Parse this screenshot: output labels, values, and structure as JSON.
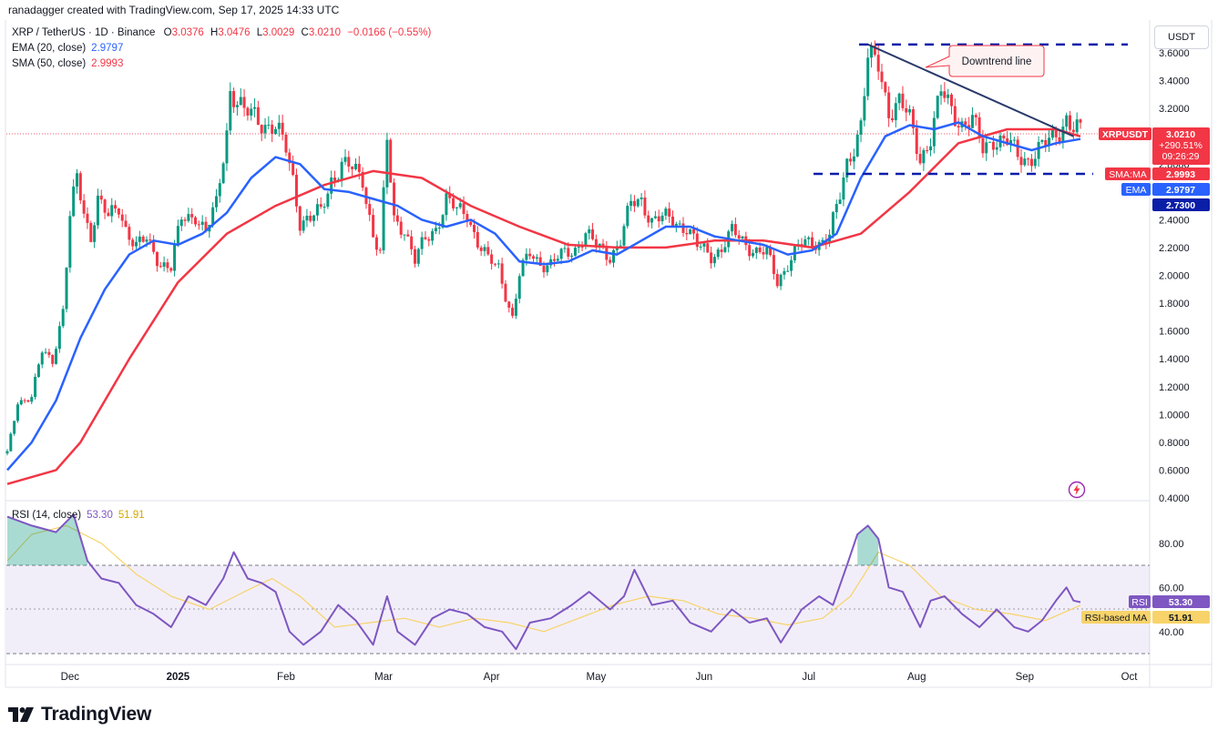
{
  "credit": "ranadagger created with TradingView.com, Sep 17, 2025 14:33 UTC",
  "legend": {
    "symbol": "XRP / TetherUS · 1D · Binance",
    "o_label": "O",
    "o_value": "3.0376",
    "h_label": "H",
    "h_value": "3.0476",
    "l_label": "L",
    "l_value": "3.0029",
    "c_label": "C",
    "c_value": "3.0210",
    "change": "−0.0166 (−0.55%)",
    "ema_label": "EMA (20, close)",
    "ema_value": "2.9797",
    "sma_label": "SMA (50, close)",
    "sma_value": "2.9993",
    "rsi_label": "RSI (14, close)",
    "rsi_value": "53.30",
    "rsi_ma_value": "51.91"
  },
  "currency_button": "USDT",
  "annotation": "Downtrend line",
  "price_tags": {
    "symbol": "XRPUSDT",
    "price": "3.0210",
    "change_pct": "+290.51%",
    "countdown": "09:26:29",
    "sma_label": "SMA:MA",
    "sma_value": "2.9993",
    "ema_label": "EMA",
    "ema_value": "2.9797",
    "level_value": "2.7300",
    "rsi_label": "RSI",
    "rsi_value": "53.30",
    "rsi_ma_label": "RSI-based MA",
    "rsi_ma_value": "51.91"
  },
  "logo_text": "TradingView",
  "colors": {
    "up": "#089981",
    "down": "#f23645",
    "ema": "#2962ff",
    "sma": "#f23645",
    "rsi": "#7e57c2",
    "rsi_ma": "#f7d36a",
    "dashed": "#0a1ea8",
    "trend": "#2a3a6b"
  },
  "chart_data": [
    {
      "type": "candlestick",
      "title": "XRP / TetherUS · 1D · Binance",
      "y_ticks": [
        "3.6000",
        "3.4000",
        "3.2000",
        "3.0000",
        "2.8000",
        "2.6000",
        "2.4000",
        "2.2000",
        "2.0000",
        "1.8000",
        "1.6000",
        "1.4000",
        "1.2000",
        "1.0000",
        "0.8000",
        "0.6000",
        "0.4000"
      ],
      "ylim": [
        0.4,
        3.6
      ],
      "x_ticks": [
        "Dec",
        "2025",
        "Feb",
        "Mar",
        "Apr",
        "May",
        "Jun",
        "Jul",
        "Aug",
        "Sep",
        "Oct"
      ],
      "date_range": [
        "2024-11-13",
        "2025-09-17"
      ],
      "close_path": [
        [
          "2024-11-13",
          0.72
        ],
        [
          "2024-11-16",
          1.1
        ],
        [
          "2024-11-20",
          1.12
        ],
        [
          "2024-11-23",
          1.45
        ],
        [
          "2024-11-26",
          1.4
        ],
        [
          "2024-11-29",
          1.75
        ],
        [
          "2024-12-01",
          2.4
        ],
        [
          "2024-12-03",
          2.7
        ],
        [
          "2024-12-05",
          2.45
        ],
        [
          "2024-12-07",
          2.3
        ],
        [
          "2024-12-09",
          2.55
        ],
        [
          "2024-12-12",
          2.4
        ],
        [
          "2024-12-15",
          2.5
        ],
        [
          "2024-12-17",
          2.35
        ],
        [
          "2024-12-20",
          2.2
        ],
        [
          "2024-12-23",
          2.25
        ],
        [
          "2024-12-27",
          2.1
        ],
        [
          "2024-12-30",
          2.05
        ],
        [
          "2025-01-02",
          2.4
        ],
        [
          "2025-01-06",
          2.45
        ],
        [
          "2025-01-09",
          2.3
        ],
        [
          "2025-01-12",
          2.5
        ],
        [
          "2025-01-15",
          3.05
        ],
        [
          "2025-01-16",
          3.35
        ],
        [
          "2025-01-18",
          3.25
        ],
        [
          "2025-01-20",
          3.15
        ],
        [
          "2025-01-23",
          3.15
        ],
        [
          "2025-01-26",
          3.1
        ],
        [
          "2025-01-29",
          3.05
        ],
        [
          "2025-02-01",
          2.9
        ],
        [
          "2025-02-03",
          2.7
        ],
        [
          "2025-02-05",
          2.4
        ],
        [
          "2025-02-08",
          2.4
        ],
        [
          "2025-02-11",
          2.45
        ],
        [
          "2025-02-14",
          2.7
        ],
        [
          "2025-02-17",
          2.8
        ],
        [
          "2025-02-20",
          2.75
        ],
        [
          "2025-02-23",
          2.7
        ],
        [
          "2025-02-26",
          2.3
        ],
        [
          "2025-02-28",
          2.15
        ],
        [
          "2025-03-02",
          2.95
        ],
        [
          "2025-03-04",
          2.4
        ],
        [
          "2025-03-07",
          2.35
        ],
        [
          "2025-03-10",
          2.1
        ],
        [
          "2025-03-13",
          2.25
        ],
        [
          "2025-03-16",
          2.35
        ],
        [
          "2025-03-19",
          2.55
        ],
        [
          "2025-03-22",
          2.45
        ],
        [
          "2025-03-25",
          2.45
        ],
        [
          "2025-03-28",
          2.25
        ],
        [
          "2025-03-31",
          2.1
        ],
        [
          "2025-04-03",
          2.05
        ],
        [
          "2025-04-07",
          1.7
        ],
        [
          "2025-04-09",
          2.0
        ],
        [
          "2025-04-12",
          2.15
        ],
        [
          "2025-04-15",
          2.1
        ],
        [
          "2025-04-18",
          2.08
        ],
        [
          "2025-04-22",
          2.15
        ],
        [
          "2025-04-25",
          2.2
        ],
        [
          "2025-04-28",
          2.3
        ],
        [
          "2025-05-01",
          2.2
        ],
        [
          "2025-05-05",
          2.15
        ],
        [
          "2025-05-08",
          2.25
        ],
        [
          "2025-05-11",
          2.5
        ],
        [
          "2025-05-14",
          2.55
        ],
        [
          "2025-05-17",
          2.4
        ],
        [
          "2025-05-20",
          2.4
        ],
        [
          "2025-05-23",
          2.4
        ],
        [
          "2025-05-27",
          2.35
        ],
        [
          "2025-05-30",
          2.2
        ],
        [
          "2025-06-03",
          2.15
        ],
        [
          "2025-06-06",
          2.2
        ],
        [
          "2025-06-09",
          2.3
        ],
        [
          "2025-06-12",
          2.25
        ],
        [
          "2025-06-16",
          2.18
        ],
        [
          "2025-06-19",
          2.15
        ],
        [
          "2025-06-22",
          1.95
        ],
        [
          "2025-06-25",
          2.1
        ],
        [
          "2025-06-28",
          2.2
        ],
        [
          "2025-07-01",
          2.22
        ],
        [
          "2025-07-04",
          2.25
        ],
        [
          "2025-07-07",
          2.3
        ],
        [
          "2025-07-10",
          2.55
        ],
        [
          "2025-07-12",
          2.8
        ],
        [
          "2025-07-14",
          2.95
        ],
        [
          "2025-07-16",
          3.1
        ],
        [
          "2025-07-18",
          3.55
        ],
        [
          "2025-07-21",
          3.5
        ],
        [
          "2025-07-24",
          3.2
        ],
        [
          "2025-07-27",
          3.25
        ],
        [
          "2025-07-30",
          3.1
        ],
        [
          "2025-08-02",
          2.85
        ],
        [
          "2025-08-05",
          3.0
        ],
        [
          "2025-08-08",
          3.3
        ],
        [
          "2025-08-11",
          3.2
        ],
        [
          "2025-08-14",
          3.1
        ],
        [
          "2025-08-17",
          3.1
        ],
        [
          "2025-08-20",
          2.9
        ],
        [
          "2025-08-23",
          3.0
        ],
        [
          "2025-08-27",
          2.95
        ],
        [
          "2025-08-30",
          2.85
        ],
        [
          "2025-09-02",
          2.85
        ],
        [
          "2025-09-05",
          2.9
        ],
        [
          "2025-09-08",
          2.95
        ],
        [
          "2025-09-11",
          3.05
        ],
        [
          "2025-09-13",
          3.15
        ],
        [
          "2025-09-15",
          3.05
        ],
        [
          "2025-09-17",
          3.021
        ]
      ],
      "ema_20_path": [
        [
          "2024-11-13",
          0.6
        ],
        [
          "2024-11-20",
          0.8
        ],
        [
          "2024-11-27",
          1.1
        ],
        [
          "2024-12-04",
          1.55
        ],
        [
          "2024-12-11",
          1.9
        ],
        [
          "2024-12-18",
          2.15
        ],
        [
          "2024-12-25",
          2.25
        ],
        [
          "2025-01-01",
          2.22
        ],
        [
          "2025-01-08",
          2.3
        ],
        [
          "2025-01-15",
          2.45
        ],
        [
          "2025-01-22",
          2.7
        ],
        [
          "2025-01-29",
          2.85
        ],
        [
          "2025-02-05",
          2.8
        ],
        [
          "2025-02-12",
          2.62
        ],
        [
          "2025-02-19",
          2.6
        ],
        [
          "2025-02-26",
          2.55
        ],
        [
          "2025-03-05",
          2.5
        ],
        [
          "2025-03-12",
          2.4
        ],
        [
          "2025-03-19",
          2.35
        ],
        [
          "2025-03-26",
          2.4
        ],
        [
          "2025-04-02",
          2.3
        ],
        [
          "2025-04-09",
          2.1
        ],
        [
          "2025-04-16",
          2.08
        ],
        [
          "2025-04-23",
          2.1
        ],
        [
          "2025-04-30",
          2.18
        ],
        [
          "2025-05-07",
          2.15
        ],
        [
          "2025-05-14",
          2.25
        ],
        [
          "2025-05-21",
          2.35
        ],
        [
          "2025-05-28",
          2.35
        ],
        [
          "2025-06-04",
          2.28
        ],
        [
          "2025-06-11",
          2.25
        ],
        [
          "2025-06-18",
          2.22
        ],
        [
          "2025-06-25",
          2.15
        ],
        [
          "2025-07-02",
          2.18
        ],
        [
          "2025-07-09",
          2.3
        ],
        [
          "2025-07-16",
          2.7
        ],
        [
          "2025-07-23",
          3.0
        ],
        [
          "2025-07-30",
          3.08
        ],
        [
          "2025-08-06",
          3.05
        ],
        [
          "2025-08-13",
          3.1
        ],
        [
          "2025-08-20",
          3.0
        ],
        [
          "2025-08-27",
          2.95
        ],
        [
          "2025-09-03",
          2.9
        ],
        [
          "2025-09-10",
          2.95
        ],
        [
          "2025-09-17",
          2.98
        ]
      ],
      "sma_50_path": [
        [
          "2024-11-13",
          0.5
        ],
        [
          "2024-11-27",
          0.6
        ],
        [
          "2024-12-04",
          0.8
        ],
        [
          "2024-12-18",
          1.4
        ],
        [
          "2025-01-01",
          1.95
        ],
        [
          "2025-01-15",
          2.3
        ],
        [
          "2025-01-29",
          2.5
        ],
        [
          "2025-02-12",
          2.65
        ],
        [
          "2025-02-26",
          2.75
        ],
        [
          "2025-03-12",
          2.7
        ],
        [
          "2025-03-26",
          2.5
        ],
        [
          "2025-04-09",
          2.35
        ],
        [
          "2025-04-23",
          2.22
        ],
        [
          "2025-05-07",
          2.2
        ],
        [
          "2025-05-21",
          2.2
        ],
        [
          "2025-06-04",
          2.25
        ],
        [
          "2025-06-18",
          2.25
        ],
        [
          "2025-07-02",
          2.2
        ],
        [
          "2025-07-16",
          2.3
        ],
        [
          "2025-07-30",
          2.6
        ],
        [
          "2025-08-13",
          2.95
        ],
        [
          "2025-08-27",
          3.05
        ],
        [
          "2025-09-10",
          3.05
        ],
        [
          "2025-09-17",
          2.999
        ]
      ],
      "horizontal_levels": [
        3.66,
        2.73
      ],
      "downtrend_line": [
        [
          "2025-07-18",
          3.66
        ],
        [
          "2025-09-15",
          3.0
        ]
      ]
    },
    {
      "type": "line",
      "title": "RSI (14, close)",
      "y_ticks": [
        "80.00",
        "60.00",
        "40.00"
      ],
      "band": [
        30,
        70
      ],
      "midline": 50,
      "rsi_path": [
        [
          "2024-11-13",
          92
        ],
        [
          "2024-11-20",
          88
        ],
        [
          "2024-11-27",
          85
        ],
        [
          "2024-12-02",
          93
        ],
        [
          "2024-12-06",
          72
        ],
        [
          "2024-12-10",
          64
        ],
        [
          "2024-12-15",
          62
        ],
        [
          "2024-12-20",
          52
        ],
        [
          "2024-12-25",
          48
        ],
        [
          "2024-12-30",
          42
        ],
        [
          "2025-01-04",
          56
        ],
        [
          "2025-01-09",
          52
        ],
        [
          "2025-01-14",
          64
        ],
        [
          "2025-01-17",
          76
        ],
        [
          "2025-01-21",
          64
        ],
        [
          "2025-01-25",
          62
        ],
        [
          "2025-01-29",
          58
        ],
        [
          "2025-02-02",
          40
        ],
        [
          "2025-02-06",
          34
        ],
        [
          "2025-02-11",
          40
        ],
        [
          "2025-02-16",
          52
        ],
        [
          "2025-02-21",
          45
        ],
        [
          "2025-02-26",
          34
        ],
        [
          "2025-03-02",
          56
        ],
        [
          "2025-03-05",
          40
        ],
        [
          "2025-03-10",
          34
        ],
        [
          "2025-03-15",
          46
        ],
        [
          "2025-03-20",
          50
        ],
        [
          "2025-03-25",
          48
        ],
        [
          "2025-03-30",
          42
        ],
        [
          "2025-04-04",
          40
        ],
        [
          "2025-04-08",
          32
        ],
        [
          "2025-04-12",
          44
        ],
        [
          "2025-04-18",
          46
        ],
        [
          "2025-04-24",
          52
        ],
        [
          "2025-04-29",
          58
        ],
        [
          "2025-05-05",
          50
        ],
        [
          "2025-05-09",
          56
        ],
        [
          "2025-05-12",
          68
        ],
        [
          "2025-05-17",
          52
        ],
        [
          "2025-05-23",
          54
        ],
        [
          "2025-05-28",
          44
        ],
        [
          "2025-06-03",
          40
        ],
        [
          "2025-06-09",
          50
        ],
        [
          "2025-06-14",
          44
        ],
        [
          "2025-06-19",
          46
        ],
        [
          "2025-06-23",
          35
        ],
        [
          "2025-06-29",
          50
        ],
        [
          "2025-07-04",
          56
        ],
        [
          "2025-07-08",
          52
        ],
        [
          "2025-07-12",
          70
        ],
        [
          "2025-07-15",
          84
        ],
        [
          "2025-07-18",
          88
        ],
        [
          "2025-07-21",
          82
        ],
        [
          "2025-07-24",
          60
        ],
        [
          "2025-07-28",
          58
        ],
        [
          "2025-08-02",
          42
        ],
        [
          "2025-08-05",
          54
        ],
        [
          "2025-08-09",
          56
        ],
        [
          "2025-08-14",
          48
        ],
        [
          "2025-08-19",
          42
        ],
        [
          "2025-08-24",
          50
        ],
        [
          "2025-08-29",
          42
        ],
        [
          "2025-09-02",
          40
        ],
        [
          "2025-09-06",
          45
        ],
        [
          "2025-09-10",
          54
        ],
        [
          "2025-09-13",
          60
        ],
        [
          "2025-09-15",
          54
        ],
        [
          "2025-09-17",
          53.3
        ]
      ],
      "rsi_ma_path": [
        [
          "2024-11-13",
          72
        ],
        [
          "2024-11-20",
          84
        ],
        [
          "2024-11-30",
          88
        ],
        [
          "2024-12-10",
          80
        ],
        [
          "2024-12-20",
          66
        ],
        [
          "2024-12-30",
          56
        ],
        [
          "2025-01-10",
          50
        ],
        [
          "2025-01-20",
          58
        ],
        [
          "2025-01-28",
          64
        ],
        [
          "2025-02-05",
          56
        ],
        [
          "2025-02-15",
          42
        ],
        [
          "2025-02-25",
          44
        ],
        [
          "2025-03-07",
          46
        ],
        [
          "2025-03-17",
          42
        ],
        [
          "2025-03-27",
          46
        ],
        [
          "2025-04-06",
          44
        ],
        [
          "2025-04-16",
          40
        ],
        [
          "2025-04-26",
          46
        ],
        [
          "2025-05-06",
          52
        ],
        [
          "2025-05-16",
          56
        ],
        [
          "2025-05-26",
          54
        ],
        [
          "2025-06-05",
          48
        ],
        [
          "2025-06-15",
          46
        ],
        [
          "2025-06-25",
          43
        ],
        [
          "2025-07-05",
          46
        ],
        [
          "2025-07-13",
          56
        ],
        [
          "2025-07-21",
          76
        ],
        [
          "2025-07-30",
          70
        ],
        [
          "2025-08-08",
          56
        ],
        [
          "2025-08-18",
          50
        ],
        [
          "2025-08-28",
          48
        ],
        [
          "2025-09-07",
          45
        ],
        [
          "2025-09-17",
          51.91
        ]
      ]
    }
  ]
}
